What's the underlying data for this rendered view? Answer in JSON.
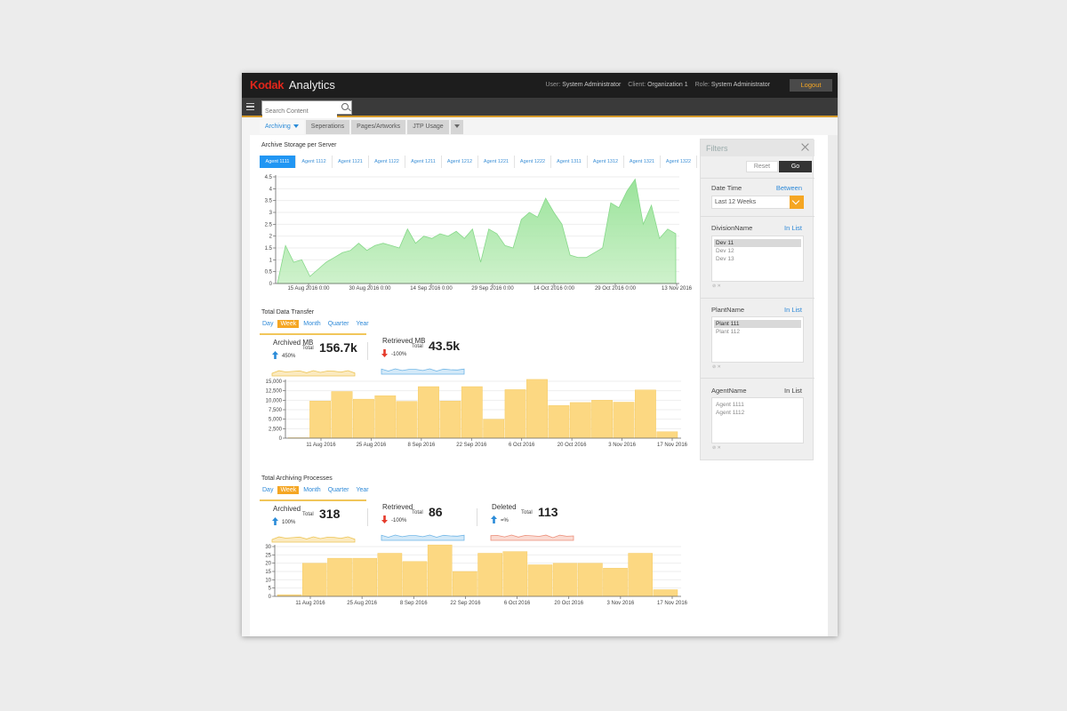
{
  "app": {
    "brand": "Kodak",
    "product": "Analytics"
  },
  "user": {
    "user_label": "User:",
    "user_value": "System Administrator",
    "client_label": "Client:",
    "client_value": "Organization 1",
    "role_label": "Role:",
    "role_value": "System Administrator",
    "logout": "Logout"
  },
  "search": {
    "placeholder": "Search Content"
  },
  "tabs": [
    {
      "label": "Archiving"
    },
    {
      "label": "Seperations"
    },
    {
      "label": "Pages/Artworks"
    },
    {
      "label": "JTP Usage"
    }
  ],
  "storage": {
    "title": "Archive Storage per Server",
    "agents": [
      "Agent 1111",
      "Agent 1112",
      "Agent 1121",
      "Agent 1122",
      "Agent 1211",
      "Agent 1212",
      "Agent 1221",
      "Agent 1222",
      "Agent 1311",
      "Agent 1312",
      "Agent 1321",
      "Agent 1322"
    ],
    "chart_data": {
      "type": "area",
      "yticks": [
        "4.5",
        "4",
        "3.5",
        "3",
        "2.5",
        "2",
        "1.5",
        "1",
        "0.5",
        "0"
      ],
      "xticks": [
        "15 Aug 2016 0:00",
        "30 Aug 2016 0:00",
        "14 Sep 2016 0:00",
        "29 Sep 2016 0:00",
        "14 Oct 2016 0:00",
        "29 Oct 2016 0:00",
        "13 Nov 2016"
      ],
      "ylim": [
        0,
        4.5
      ],
      "color": "#86d889",
      "values": [
        0,
        1.6,
        0.9,
        1.0,
        0.3,
        0.6,
        0.9,
        1.1,
        1.3,
        1.4,
        1.7,
        1.4,
        1.6,
        1.7,
        1.6,
        1.5,
        2.3,
        1.7,
        2.0,
        1.9,
        2.1,
        2.0,
        2.2,
        1.9,
        2.3,
        0.9,
        2.3,
        2.1,
        1.6,
        1.5,
        2.7,
        3.0,
        2.8,
        3.6,
        3.0,
        2.5,
        1.2,
        1.1,
        1.1,
        1.3,
        1.5,
        3.4,
        3.2,
        3.9,
        4.4,
        2.5,
        3.3,
        1.9,
        2.3,
        2.1
      ]
    }
  },
  "transfer": {
    "title": "Total Data Transfer",
    "periods": [
      "Day",
      "Week",
      "Month",
      "Quarter",
      "Year"
    ],
    "active_period": "Week",
    "kpis": [
      {
        "name": "Archived MB",
        "pct": "450%",
        "total_label": "Total",
        "total": "156.7k",
        "direction": "up"
      },
      {
        "name": "Retrieved MB",
        "pct": "-100%",
        "total_label": "Total",
        "total": "43.5k",
        "direction": "down"
      }
    ],
    "chart_data": {
      "type": "bar",
      "yticks": [
        "15,000",
        "12,500",
        "10,000",
        "7,500",
        "5,000",
        "2,500",
        "0"
      ],
      "xticks": [
        "11 Aug 2016",
        "25 Aug 2016",
        "8 Sep 2016",
        "22 Sep 2016",
        "6 Oct 2016",
        "20 Oct 2016",
        "3 Nov 2016",
        "17 Nov 2016"
      ],
      "ylim": [
        0,
        15000
      ],
      "color": "#fcd882",
      "values": [
        0,
        9800,
        12300,
        10300,
        11200,
        9700,
        13600,
        9800,
        13600,
        5000,
        12800,
        15500,
        8600,
        9400,
        10000,
        9500,
        12700,
        1700
      ]
    }
  },
  "processes": {
    "title": "Total Archiving Processes",
    "periods": [
      "Day",
      "Week",
      "Month",
      "Quarter",
      "Year"
    ],
    "active_period": "Week",
    "kpis": [
      {
        "name": "Archived",
        "pct": "100%",
        "total_label": "Total",
        "total": "318",
        "direction": "up"
      },
      {
        "name": "Retrieved",
        "pct": "-100%",
        "total_label": "Total",
        "total": "86",
        "direction": "down"
      },
      {
        "name": "Deleted",
        "pct": "=%",
        "total_label": "Total",
        "total": "113",
        "direction": "up"
      }
    ],
    "chart_data": {
      "type": "bar",
      "yticks": [
        "30",
        "25",
        "20",
        "15",
        "10",
        "5",
        "0"
      ],
      "xticks": [
        "11 Aug 2016",
        "25 Aug 2016",
        "8 Sep 2016",
        "22 Sep 2016",
        "6 Oct 2016",
        "20 Oct 2016",
        "3 Nov 2016",
        "17 Nov 2016"
      ],
      "ylim": [
        0,
        30
      ],
      "color": "#fcd882",
      "values": [
        1,
        20,
        23,
        23,
        26,
        21,
        31,
        15,
        26,
        27,
        19,
        20,
        20,
        17,
        26,
        4
      ]
    }
  },
  "filters": {
    "title": "Filters",
    "reset": "Reset",
    "go": "Go",
    "date_label": "Date Time",
    "date_mode": "Between",
    "date_value": "Last 12 Weeks",
    "division_label": "DivisionName",
    "division_mode": "In List",
    "divisions": [
      "Dev 11",
      "Dev 12",
      "Dev 13"
    ],
    "plant_label": "PlantName",
    "plant_mode": "In List",
    "plants": [
      "Plant 111",
      "Plant 112"
    ],
    "agent_label": "AgentName",
    "agent_mode": "In List",
    "agents": [
      "Agent 1111",
      "Agent 1112"
    ]
  }
}
